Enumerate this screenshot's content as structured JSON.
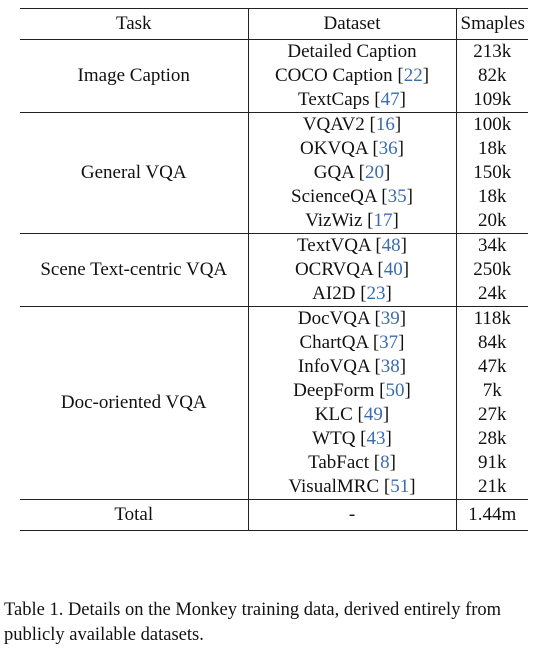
{
  "headers": {
    "task": "Task",
    "dataset": "Dataset",
    "samples": "Smaples"
  },
  "groups": [
    {
      "task": "Image Caption",
      "rows": [
        {
          "dataset": "Detailed Caption",
          "ref": "",
          "samples": "213k"
        },
        {
          "dataset": "COCO Caption",
          "ref": "22",
          "samples": "82k"
        },
        {
          "dataset": "TextCaps",
          "ref": "47",
          "samples": "109k"
        }
      ]
    },
    {
      "task": "General VQA",
      "rows": [
        {
          "dataset": "VQAV2",
          "ref": "16",
          "samples": "100k"
        },
        {
          "dataset": "OKVQA",
          "ref": "36",
          "samples": "18k"
        },
        {
          "dataset": "GQA",
          "ref": "20",
          "samples": "150k"
        },
        {
          "dataset": "ScienceQA",
          "ref": "35",
          "samples": "18k"
        },
        {
          "dataset": "VizWiz",
          "ref": "17",
          "samples": "20k"
        }
      ]
    },
    {
      "task": "Scene Text-centric VQA",
      "rows": [
        {
          "dataset": "TextVQA",
          "ref": "48",
          "samples": "34k"
        },
        {
          "dataset": "OCRVQA",
          "ref": "40",
          "samples": "250k"
        },
        {
          "dataset": "AI2D",
          "ref": "23",
          "samples": "24k"
        }
      ]
    },
    {
      "task": "Doc-oriented VQA",
      "rows": [
        {
          "dataset": "DocVQA",
          "ref": "39",
          "samples": "118k"
        },
        {
          "dataset": "ChartQA",
          "ref": "37",
          "samples": "84k"
        },
        {
          "dataset": "InfoVQA",
          "ref": "38",
          "samples": "47k"
        },
        {
          "dataset": "DeepForm",
          "ref": "50",
          "samples": "7k"
        },
        {
          "dataset": "KLC",
          "ref": "49",
          "samples": "27k"
        },
        {
          "dataset": "WTQ",
          "ref": "43",
          "samples": "28k"
        },
        {
          "dataset": "TabFact",
          "ref": "8",
          "samples": "91k"
        },
        {
          "dataset": "VisualMRC",
          "ref": "51",
          "samples": "21k"
        }
      ]
    }
  ],
  "total": {
    "label": "Total",
    "dataset": "-",
    "samples": "1.44m"
  },
  "caption": "Table 1. Details on the Monkey training data, derived entirely from publicly available datasets.",
  "colors": {
    "citation": "#3a6cb0",
    "text": "#111111",
    "rule": "#222222"
  }
}
